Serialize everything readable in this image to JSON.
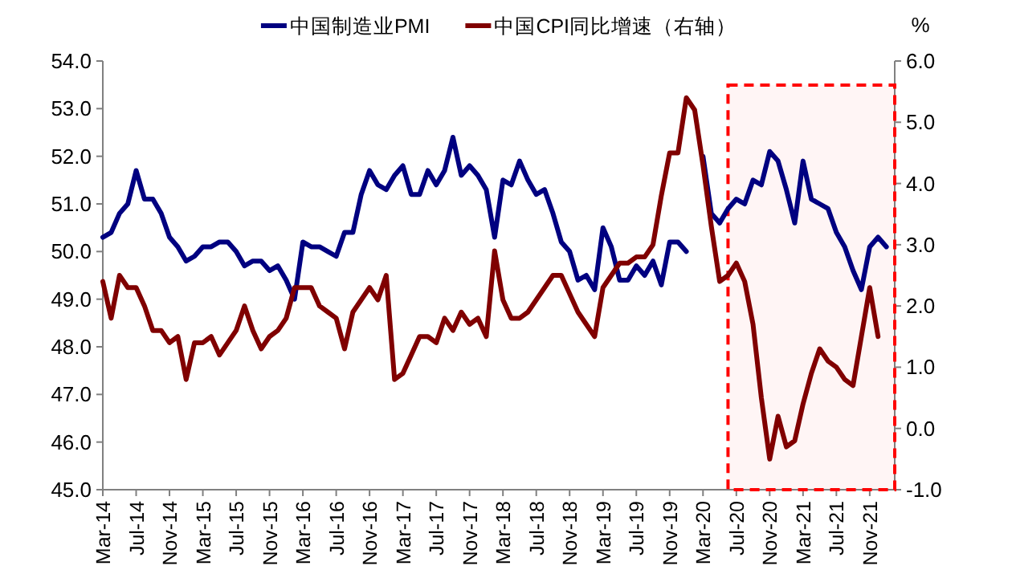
{
  "chart_data": {
    "type": "line",
    "x": [
      "2014-03",
      "2014-04",
      "2014-05",
      "2014-06",
      "2014-07",
      "2014-08",
      "2014-09",
      "2014-10",
      "2014-11",
      "2014-12",
      "2015-01",
      "2015-02",
      "2015-03",
      "2015-04",
      "2015-05",
      "2015-06",
      "2015-07",
      "2015-08",
      "2015-09",
      "2015-10",
      "2015-11",
      "2015-12",
      "2016-01",
      "2016-02",
      "2016-03",
      "2016-04",
      "2016-05",
      "2016-06",
      "2016-07",
      "2016-08",
      "2016-09",
      "2016-10",
      "2016-11",
      "2016-12",
      "2017-01",
      "2017-02",
      "2017-03",
      "2017-04",
      "2017-05",
      "2017-06",
      "2017-07",
      "2017-08",
      "2017-09",
      "2017-10",
      "2017-11",
      "2017-12",
      "2018-01",
      "2018-02",
      "2018-03",
      "2018-04",
      "2018-05",
      "2018-06",
      "2018-07",
      "2018-08",
      "2018-09",
      "2018-10",
      "2018-11",
      "2018-12",
      "2019-01",
      "2019-02",
      "2019-03",
      "2019-04",
      "2019-05",
      "2019-06",
      "2019-07",
      "2019-08",
      "2019-09",
      "2019-10",
      "2019-11",
      "2019-12",
      "2020-01",
      "2020-02",
      "2020-03",
      "2020-04",
      "2020-05",
      "2020-06",
      "2020-07",
      "2020-08",
      "2020-09",
      "2020-10",
      "2020-11",
      "2020-12",
      "2021-01",
      "2021-02",
      "2021-03",
      "2021-04",
      "2021-05",
      "2021-06",
      "2021-07",
      "2021-08",
      "2021-09",
      "2021-10",
      "2021-11",
      "2021-12",
      "2022-01"
    ],
    "series": [
      {
        "name": "中国制造业PMI",
        "color": "#000080",
        "values": [
          50.3,
          50.4,
          50.8,
          51.0,
          51.7,
          51.1,
          51.1,
          50.8,
          50.3,
          50.1,
          49.8,
          49.9,
          50.1,
          50.1,
          50.2,
          50.2,
          50.0,
          49.7,
          49.8,
          49.8,
          49.6,
          49.7,
          49.4,
          49.0,
          50.2,
          50.1,
          50.1,
          50.0,
          49.9,
          50.4,
          50.4,
          51.2,
          51.7,
          51.4,
          51.3,
          51.6,
          51.8,
          51.2,
          51.2,
          51.7,
          51.4,
          51.7,
          52.4,
          51.6,
          51.8,
          51.6,
          51.3,
          50.3,
          51.5,
          51.4,
          51.9,
          51.5,
          51.2,
          51.3,
          50.8,
          50.2,
          50.0,
          49.4,
          49.5,
          49.2,
          50.5,
          50.1,
          49.4,
          49.4,
          49.7,
          49.5,
          49.8,
          49.3,
          50.2,
          50.2,
          50.0,
          null,
          52.0,
          50.8,
          50.6,
          50.9,
          51.1,
          51.0,
          51.5,
          51.4,
          52.1,
          51.9,
          51.3,
          50.6,
          51.9,
          51.1,
          51.0,
          50.9,
          50.4,
          50.1,
          49.6,
          49.2,
          50.1,
          50.3,
          50.1
        ]
      },
      {
        "name": "中国CPI同比增速（右轴）",
        "color": "#800000",
        "axis": "y2",
        "values": [
          2.4,
          1.8,
          2.5,
          2.3,
          2.3,
          2.0,
          1.6,
          1.6,
          1.4,
          1.5,
          0.8,
          1.4,
          1.4,
          1.5,
          1.2,
          1.4,
          1.6,
          2.0,
          1.6,
          1.3,
          1.5,
          1.6,
          1.8,
          2.3,
          2.3,
          2.3,
          2.0,
          1.9,
          1.8,
          1.3,
          1.9,
          2.1,
          2.3,
          2.1,
          2.5,
          0.8,
          0.9,
          1.2,
          1.5,
          1.5,
          1.4,
          1.8,
          1.6,
          1.9,
          1.7,
          1.8,
          1.5,
          2.9,
          2.1,
          1.8,
          1.8,
          1.9,
          2.1,
          2.3,
          2.5,
          2.5,
          2.2,
          1.9,
          1.7,
          1.5,
          2.3,
          2.5,
          2.7,
          2.7,
          2.8,
          2.8,
          3.0,
          3.8,
          4.5,
          4.5,
          5.4,
          5.2,
          4.3,
          3.3,
          2.4,
          2.5,
          2.7,
          2.4,
          1.7,
          0.5,
          -0.5,
          0.2,
          -0.3,
          -0.2,
          0.4,
          0.9,
          1.3,
          1.1,
          1.0,
          0.8,
          0.7,
          1.5,
          2.3,
          1.5,
          null
        ]
      }
    ],
    "xlim": [
      "2014-03",
      "2022-02"
    ],
    "xticks": [
      {
        "value": "2014-03",
        "label": "Mar-14"
      },
      {
        "value": "2014-07",
        "label": "Jul-14"
      },
      {
        "value": "2014-11",
        "label": "Nov-14"
      },
      {
        "value": "2015-03",
        "label": "Mar-15"
      },
      {
        "value": "2015-07",
        "label": "Jul-15"
      },
      {
        "value": "2015-11",
        "label": "Nov-15"
      },
      {
        "value": "2016-03",
        "label": "Mar-16"
      },
      {
        "value": "2016-07",
        "label": "Jul-16"
      },
      {
        "value": "2016-11",
        "label": "Nov-16"
      },
      {
        "value": "2017-03",
        "label": "Mar-17"
      },
      {
        "value": "2017-07",
        "label": "Jul-17"
      },
      {
        "value": "2017-11",
        "label": "Nov-17"
      },
      {
        "value": "2018-03",
        "label": "Mar-18"
      },
      {
        "value": "2018-07",
        "label": "Jul-18"
      },
      {
        "value": "2018-11",
        "label": "Nov-18"
      },
      {
        "value": "2019-03",
        "label": "Mar-19"
      },
      {
        "value": "2019-07",
        "label": "Jul-19"
      },
      {
        "value": "2019-11",
        "label": "Nov-19"
      },
      {
        "value": "2020-03",
        "label": "Mar-20"
      },
      {
        "value": "2020-07",
        "label": "Jul-20"
      },
      {
        "value": "2020-11",
        "label": "Nov-20"
      },
      {
        "value": "2021-03",
        "label": "Mar-21"
      },
      {
        "value": "2021-07",
        "label": "Jul-21"
      },
      {
        "value": "2021-11",
        "label": "Nov-21"
      }
    ],
    "ylim": [
      45,
      54
    ],
    "yticks": [
      {
        "value": 45,
        "label": "45.0"
      },
      {
        "value": 46,
        "label": "46.0"
      },
      {
        "value": 47,
        "label": "47.0"
      },
      {
        "value": 48,
        "label": "48.0"
      },
      {
        "value": 49,
        "label": "49.0"
      },
      {
        "value": 50,
        "label": "50.0"
      },
      {
        "value": 51,
        "label": "51.0"
      },
      {
        "value": 52,
        "label": "52.0"
      },
      {
        "value": 53,
        "label": "53.0"
      },
      {
        "value": 54,
        "label": "54.0"
      }
    ],
    "y2lim": [
      -1,
      6
    ],
    "y2ticks": [
      {
        "value": -1,
        "label": "-1.0"
      },
      {
        "value": 0,
        "label": "0.0"
      },
      {
        "value": 1,
        "label": "1.0"
      },
      {
        "value": 2,
        "label": "2.0"
      },
      {
        "value": 3,
        "label": "3.0"
      },
      {
        "value": 4,
        "label": "4.0"
      },
      {
        "value": 5,
        "label": "5.0"
      },
      {
        "value": 6,
        "label": "6.0"
      }
    ],
    "y2label": "%",
    "bands": [
      {
        "axis": "x",
        "from": "2020-06",
        "to": "2022-02",
        "color": "#ff0000"
      }
    ],
    "legend": "top",
    "grid": false,
    "marker": "none",
    "line_style": "solid"
  }
}
